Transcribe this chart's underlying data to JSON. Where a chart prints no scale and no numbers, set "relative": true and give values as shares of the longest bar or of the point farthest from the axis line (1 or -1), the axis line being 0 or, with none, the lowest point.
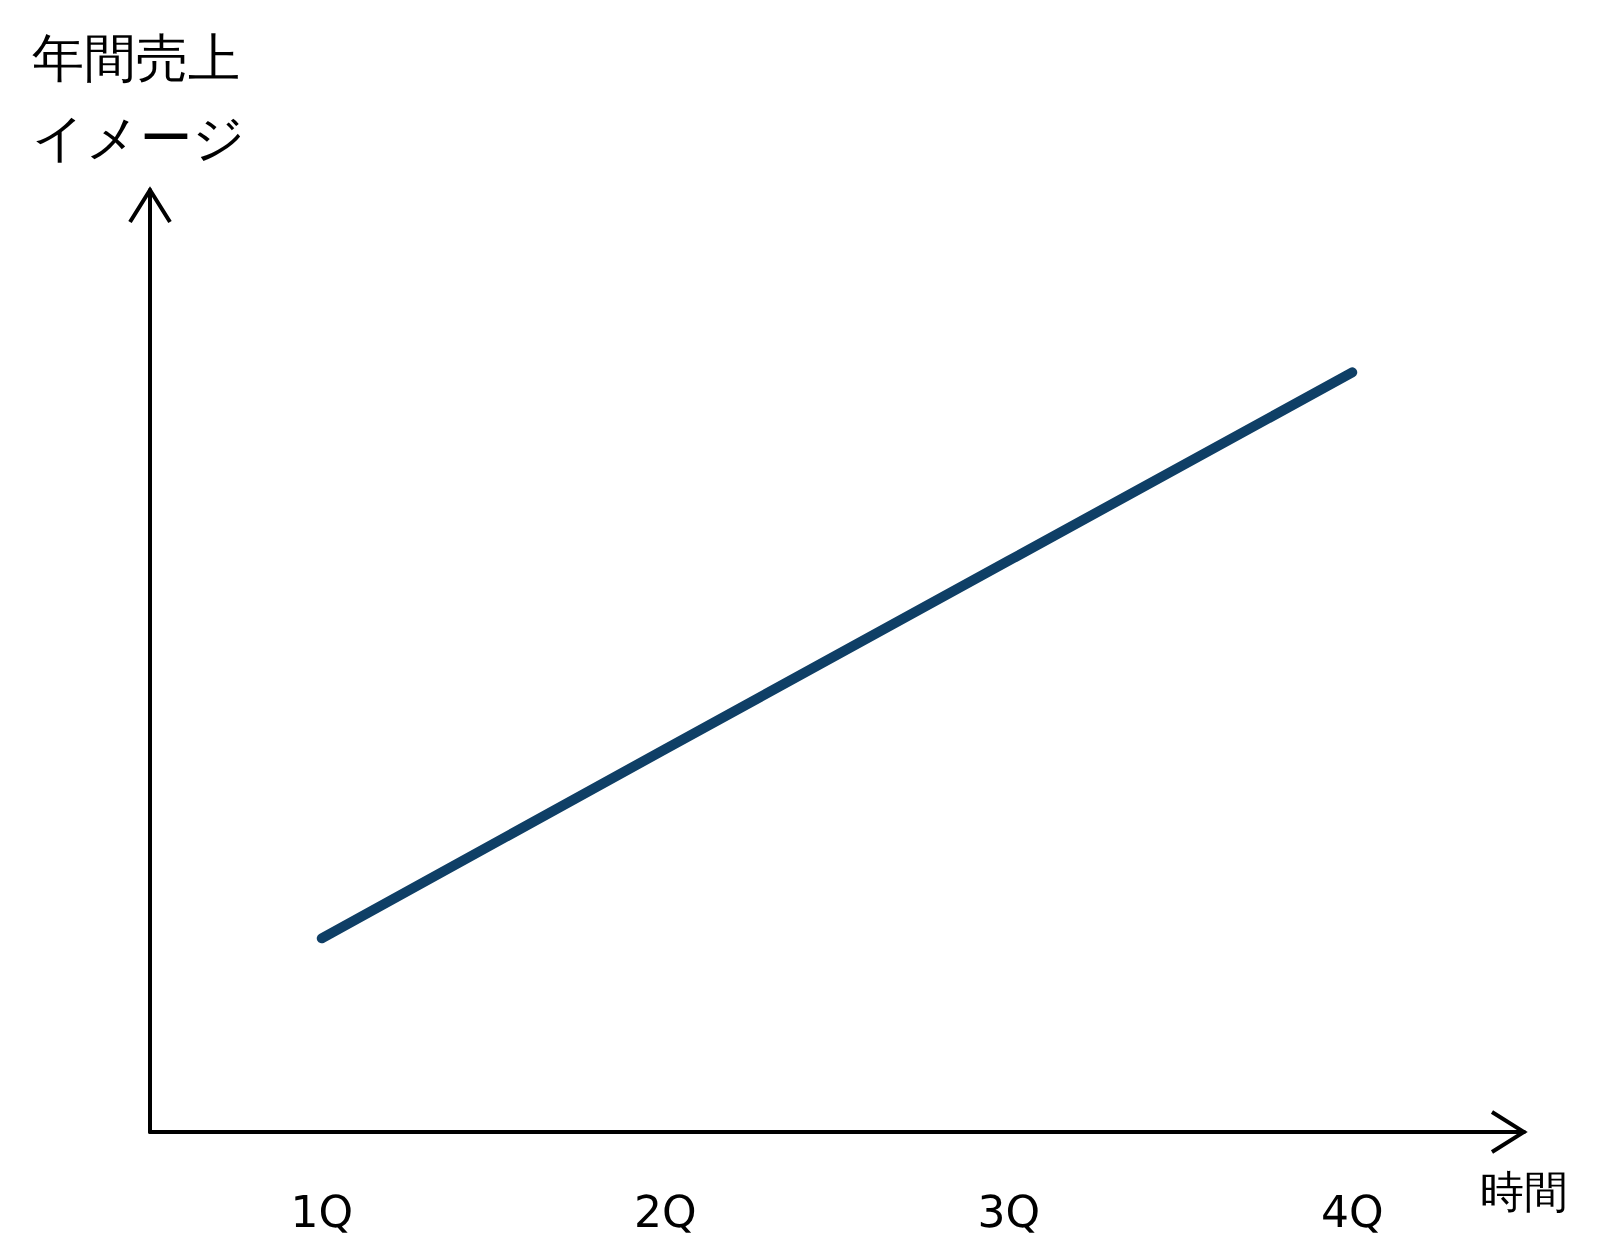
{
  "chart_data": {
    "type": "line",
    "xlabel": "時間",
    "ylabel": "年間売上イメージ",
    "categories": [
      "1Q",
      "2Q",
      "3Q",
      "4Q"
    ],
    "relative": true,
    "series": [
      {
        "color": "#0f3f66",
        "values": [
          0.255,
          0.504,
          0.752,
          1
        ]
      }
    ],
    "marker": "none",
    "line_style": "solid",
    "grid": false
  }
}
